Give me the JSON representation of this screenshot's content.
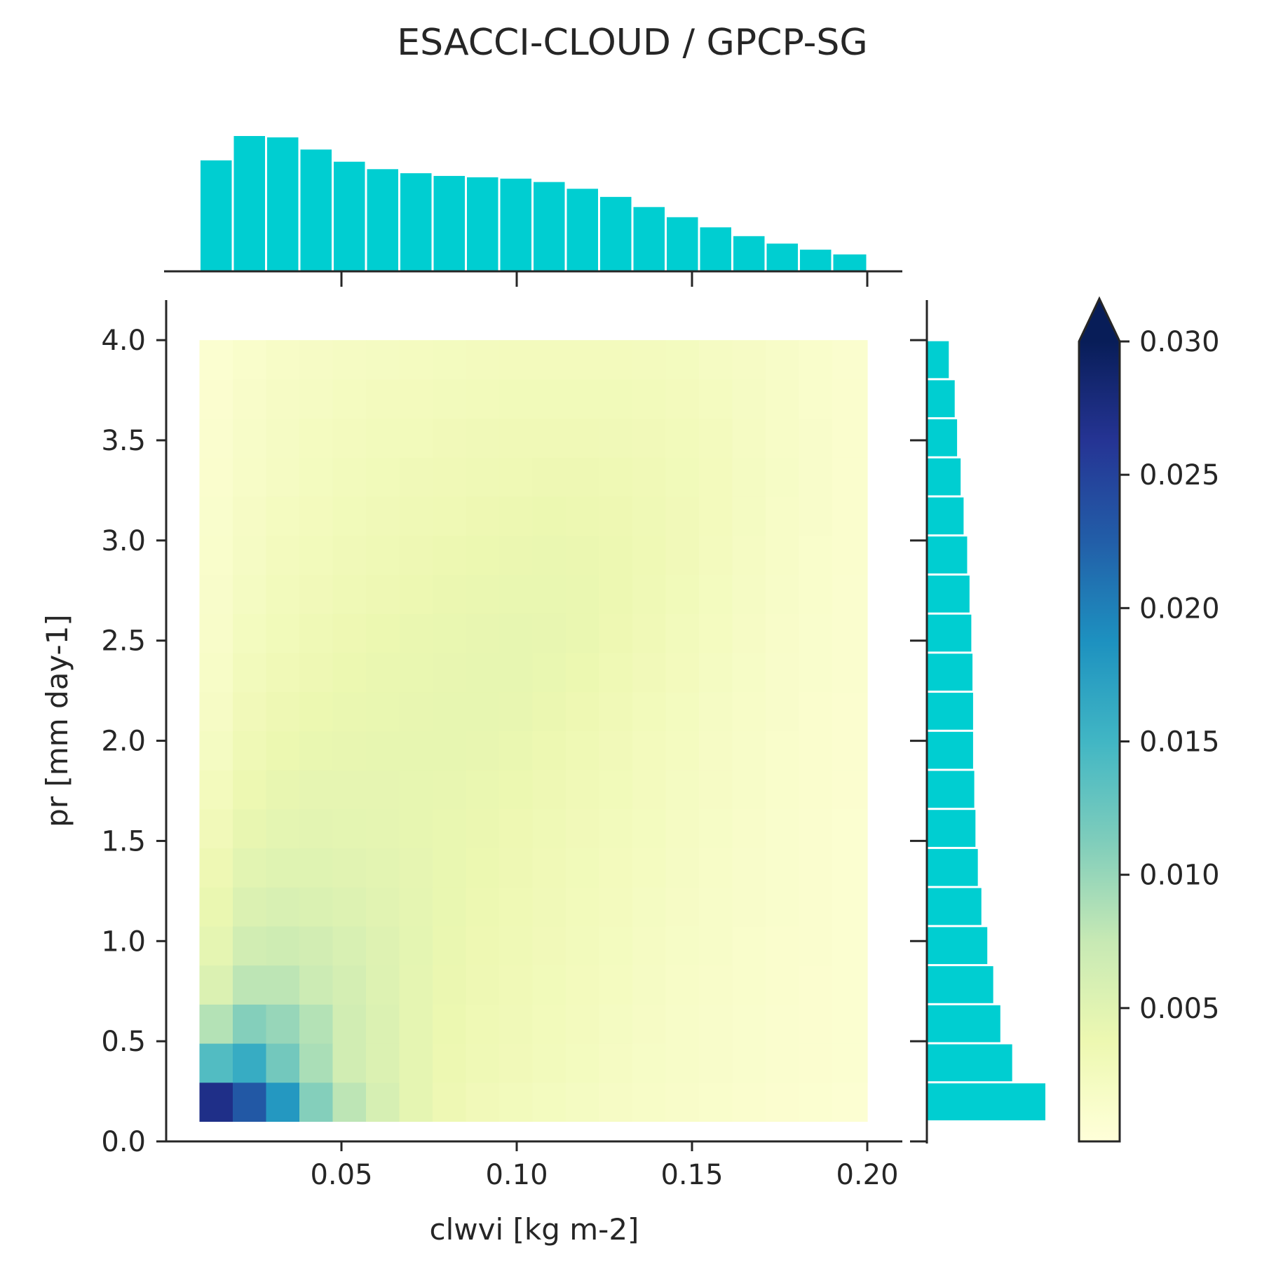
{
  "chart_data": {
    "type": "heatmap",
    "title": "ESACCI-CLOUD / GPCP-SG",
    "xlabel": "clwvi [kg m-2]",
    "ylabel": "pr [mm day-1]",
    "xlim": [
      0.0,
      0.21
    ],
    "ylim": [
      0.0,
      4.2
    ],
    "x_ticks": [
      0.05,
      0.1,
      0.15,
      0.2
    ],
    "x_tick_labels": [
      "0.05",
      "0.10",
      "0.15",
      "0.20"
    ],
    "y_ticks": [
      0.0,
      0.5,
      1.0,
      1.5,
      2.0,
      2.5,
      3.0,
      3.5,
      4.0
    ],
    "y_tick_labels": [
      "0.0",
      "0.5",
      "1.0",
      "1.5",
      "2.0",
      "2.5",
      "3.0",
      "3.5",
      "4.0"
    ],
    "x_edges": [
      0.0095,
      0.019,
      0.0285,
      0.038,
      0.0475,
      0.057,
      0.0665,
      0.076,
      0.0855,
      0.095,
      0.1045,
      0.114,
      0.1235,
      0.133,
      0.1425,
      0.152,
      0.1615,
      0.171,
      0.1805,
      0.19,
      0.2
    ],
    "y_edges": [
      0.1,
      0.295,
      0.49,
      0.685,
      0.88,
      1.075,
      1.27,
      1.465,
      1.66,
      1.855,
      2.05,
      2.245,
      2.44,
      2.635,
      2.83,
      3.025,
      3.22,
      3.415,
      3.61,
      3.805,
      4.0
    ],
    "z_rows_from_bottom": [
      [
        0.027,
        0.023,
        0.018,
        0.011,
        0.008,
        0.006,
        0.0045,
        0.0035,
        0.003,
        0.0027,
        0.0024,
        0.0022,
        0.0019,
        0.0017,
        0.0015,
        0.0013,
        0.0011,
        0.0009,
        0.0008,
        0.0007
      ],
      [
        0.014,
        0.016,
        0.012,
        0.009,
        0.0065,
        0.0055,
        0.0045,
        0.0037,
        0.0033,
        0.003,
        0.0027,
        0.0024,
        0.0021,
        0.0018,
        0.0016,
        0.0014,
        0.0012,
        0.001,
        0.0009,
        0.0008
      ],
      [
        0.0085,
        0.011,
        0.01,
        0.0085,
        0.0065,
        0.0055,
        0.0045,
        0.0038,
        0.0034,
        0.0031,
        0.0028,
        0.0025,
        0.0022,
        0.0019,
        0.0016,
        0.0014,
        0.0012,
        0.001,
        0.0009,
        0.0008
      ],
      [
        0.0055,
        0.008,
        0.008,
        0.007,
        0.0062,
        0.0053,
        0.0045,
        0.0039,
        0.0035,
        0.0032,
        0.0029,
        0.0026,
        0.0023,
        0.002,
        0.0017,
        0.0015,
        0.0013,
        0.0011,
        0.0009,
        0.0008
      ],
      [
        0.0045,
        0.0065,
        0.0068,
        0.0064,
        0.0058,
        0.0052,
        0.0046,
        0.004,
        0.0036,
        0.0033,
        0.003,
        0.0027,
        0.0024,
        0.0021,
        0.0018,
        0.0016,
        0.0013,
        0.0011,
        0.001,
        0.0008
      ],
      [
        0.004,
        0.0055,
        0.0058,
        0.0056,
        0.0053,
        0.0049,
        0.0045,
        0.0041,
        0.0037,
        0.0034,
        0.0031,
        0.0028,
        0.0025,
        0.0022,
        0.0019,
        0.0016,
        0.0014,
        0.0012,
        0.001,
        0.0008
      ],
      [
        0.0035,
        0.0048,
        0.0051,
        0.0051,
        0.0049,
        0.0047,
        0.0044,
        0.0041,
        0.0038,
        0.0035,
        0.0032,
        0.0029,
        0.0026,
        0.0023,
        0.002,
        0.0017,
        0.0014,
        0.0012,
        0.001,
        0.0008
      ],
      [
        0.003,
        0.0042,
        0.0046,
        0.0047,
        0.0046,
        0.0045,
        0.0043,
        0.0041,
        0.0039,
        0.0036,
        0.0033,
        0.003,
        0.0027,
        0.0024,
        0.0021,
        0.0018,
        0.0015,
        0.0012,
        0.001,
        0.0008
      ],
      [
        0.0026,
        0.0037,
        0.0042,
        0.0044,
        0.0044,
        0.0044,
        0.0043,
        0.0042,
        0.004,
        0.0038,
        0.0035,
        0.0032,
        0.0029,
        0.0025,
        0.0022,
        0.0019,
        0.0016,
        0.0013,
        0.0011,
        0.0009
      ],
      [
        0.0022,
        0.0033,
        0.0038,
        0.0041,
        0.0042,
        0.0043,
        0.0043,
        0.0043,
        0.0042,
        0.004,
        0.0037,
        0.0034,
        0.003,
        0.0026,
        0.0023,
        0.0019,
        0.0016,
        0.0013,
        0.0011,
        0.0009
      ],
      [
        0.0019,
        0.003,
        0.0035,
        0.0038,
        0.004,
        0.0041,
        0.0042,
        0.0043,
        0.0043,
        0.0042,
        0.0039,
        0.0036,
        0.0032,
        0.0028,
        0.0024,
        0.002,
        0.0017,
        0.0014,
        0.0011,
        0.0009
      ],
      [
        0.0017,
        0.0027,
        0.0032,
        0.0035,
        0.0038,
        0.004,
        0.0041,
        0.0042,
        0.0043,
        0.0043,
        0.0041,
        0.0038,
        0.0034,
        0.003,
        0.0026,
        0.0022,
        0.0018,
        0.0014,
        0.0012,
        0.001
      ],
      [
        0.0015,
        0.0024,
        0.0029,
        0.0033,
        0.0036,
        0.0038,
        0.004,
        0.0041,
        0.0042,
        0.0043,
        0.0042,
        0.004,
        0.0036,
        0.0032,
        0.0027,
        0.0023,
        0.0019,
        0.0015,
        0.0012,
        0.001
      ],
      [
        0.0014,
        0.0022,
        0.0027,
        0.003,
        0.0033,
        0.0035,
        0.0037,
        0.0039,
        0.004,
        0.0041,
        0.0041,
        0.004,
        0.0037,
        0.0033,
        0.0029,
        0.0024,
        0.002,
        0.0016,
        0.0013,
        0.001
      ],
      [
        0.0013,
        0.002,
        0.0025,
        0.0028,
        0.0031,
        0.0033,
        0.0035,
        0.0037,
        0.0038,
        0.0039,
        0.004,
        0.0039,
        0.0037,
        0.0034,
        0.003,
        0.0025,
        0.0021,
        0.0017,
        0.0013,
        0.0011
      ],
      [
        0.0012,
        0.0019,
        0.0023,
        0.0026,
        0.0029,
        0.0031,
        0.0033,
        0.0034,
        0.0036,
        0.0037,
        0.0038,
        0.0037,
        0.0036,
        0.0033,
        0.003,
        0.0026,
        0.0022,
        0.0017,
        0.0014,
        0.0011
      ],
      [
        0.0011,
        0.0017,
        0.0021,
        0.0024,
        0.0027,
        0.0029,
        0.0031,
        0.0032,
        0.0033,
        0.0034,
        0.0035,
        0.0035,
        0.0034,
        0.0032,
        0.0029,
        0.0026,
        0.0022,
        0.0018,
        0.0014,
        0.0011
      ],
      [
        0.001,
        0.0016,
        0.002,
        0.0023,
        0.0025,
        0.0027,
        0.0028,
        0.003,
        0.0031,
        0.0032,
        0.0032,
        0.0032,
        0.0031,
        0.003,
        0.0028,
        0.0025,
        0.0021,
        0.0017,
        0.0014,
        0.0011
      ],
      [
        0.0009,
        0.0015,
        0.0019,
        0.0021,
        0.0023,
        0.0025,
        0.0026,
        0.0027,
        0.0028,
        0.0029,
        0.0029,
        0.0029,
        0.0029,
        0.0028,
        0.0026,
        0.0023,
        0.002,
        0.0017,
        0.0013,
        0.0011
      ],
      [
        0.0008,
        0.0013,
        0.0017,
        0.0019,
        0.0021,
        0.0022,
        0.0023,
        0.0024,
        0.0025,
        0.0026,
        0.0026,
        0.0026,
        0.0026,
        0.0025,
        0.0024,
        0.0021,
        0.0019,
        0.0016,
        0.0013,
        0.001
      ]
    ],
    "top_histogram": {
      "relative_heights": [
        0.82,
        1.0,
        0.99,
        0.9,
        0.81,
        0.755,
        0.725,
        0.705,
        0.695,
        0.685,
        0.66,
        0.61,
        0.55,
        0.475,
        0.4,
        0.325,
        0.26,
        0.205,
        0.16,
        0.125
      ],
      "color": "#00ced1"
    },
    "right_histogram": {
      "relative_lengths_from_bottom": [
        1.0,
        0.72,
        0.62,
        0.56,
        0.51,
        0.46,
        0.43,
        0.41,
        0.4,
        0.39,
        0.39,
        0.385,
        0.375,
        0.36,
        0.34,
        0.31,
        0.285,
        0.255,
        0.235,
        0.185
      ],
      "color": "#00ced1"
    },
    "colorbar": {
      "cmap": "YlGnBu",
      "vmin": 0.0,
      "vmax": 0.03,
      "extend": "max",
      "ticks": [
        0.005,
        0.01,
        0.015,
        0.02,
        0.025,
        0.03
      ],
      "tick_labels": [
        "0.005",
        "0.010",
        "0.015",
        "0.020",
        "0.025",
        "0.030"
      ]
    },
    "grid": false
  }
}
